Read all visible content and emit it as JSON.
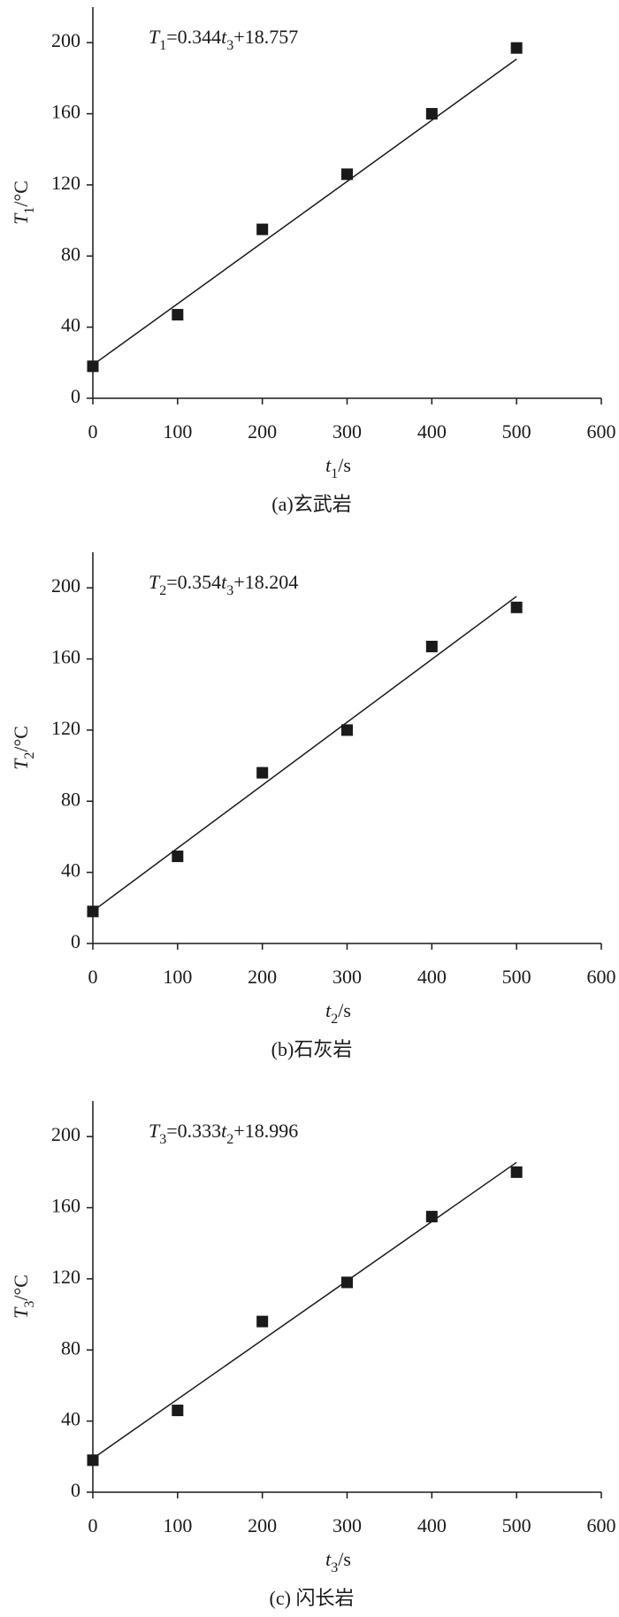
{
  "chart_data": [
    {
      "type": "scatter",
      "annotation": "T1=0.344t3+18.757",
      "x_label": "t1/s",
      "y_label": "T1/°C",
      "caption": "(a)玄武岩",
      "x": [
        0,
        100,
        200,
        300,
        400,
        500
      ],
      "values": [
        18,
        47,
        95,
        126,
        160,
        197
      ],
      "color": "#1a1a1a",
      "fit": {
        "slope": 0.344,
        "intercept": 18.757,
        "x": [
          0,
          500
        ]
      },
      "xlim": [
        0,
        600
      ],
      "xticks": [
        0,
        100,
        200,
        300,
        400,
        500,
        600
      ],
      "ylim": [
        0,
        220
      ],
      "yticks": [
        0,
        40,
        80,
        120,
        160,
        200
      ]
    },
    {
      "type": "scatter",
      "annotation": "T2=0.354t3+18.204",
      "x_label": "t2/s",
      "y_label": "T2/°C",
      "caption": "(b)石灰岩",
      "x": [
        0,
        100,
        200,
        300,
        400,
        500
      ],
      "values": [
        18,
        49,
        96,
        120,
        167,
        189
      ],
      "color": "#1a1a1a",
      "fit": {
        "slope": 0.354,
        "intercept": 18.204,
        "x": [
          0,
          500
        ]
      },
      "xlim": [
        0,
        600
      ],
      "xticks": [
        0,
        100,
        200,
        300,
        400,
        500,
        600
      ],
      "ylim": [
        0,
        220
      ],
      "yticks": [
        0,
        40,
        80,
        120,
        160,
        200
      ]
    },
    {
      "type": "scatter",
      "annotation": "T3=0.333t2+18.996",
      "x_label": "t3/s",
      "y_label": "T3/°C",
      "caption": "(c) 闪长岩",
      "x": [
        0,
        100,
        200,
        300,
        400,
        500
      ],
      "values": [
        18,
        46,
        96,
        118,
        155,
        180
      ],
      "color": "#1a1a1a",
      "fit": {
        "slope": 0.333,
        "intercept": 18.996,
        "x": [
          0,
          500
        ]
      },
      "xlim": [
        0,
        600
      ],
      "xticks": [
        0,
        100,
        200,
        300,
        400,
        500,
        600
      ],
      "ylim": [
        0,
        220
      ],
      "yticks": [
        0,
        40,
        80,
        120,
        160,
        200
      ]
    }
  ]
}
